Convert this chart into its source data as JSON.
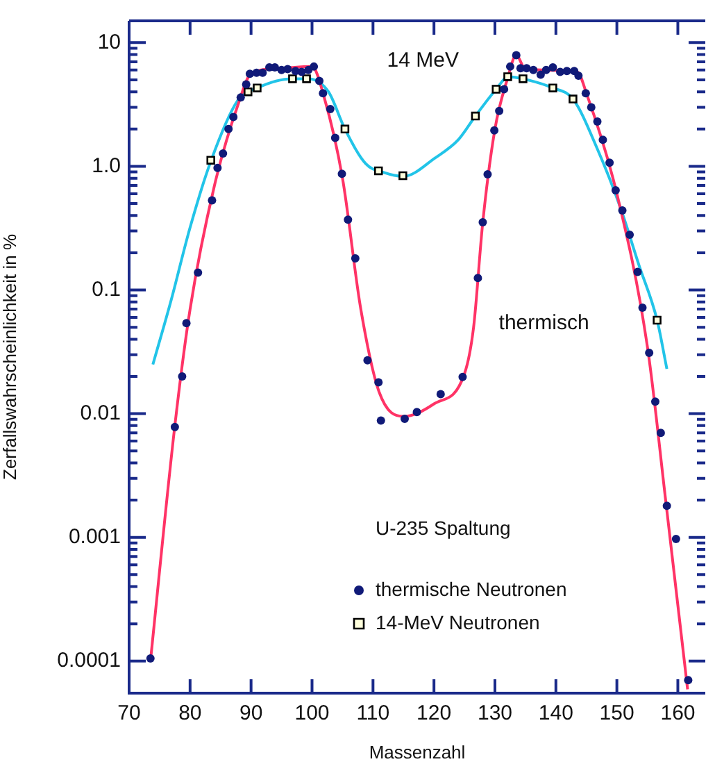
{
  "chart_data": {
    "type": "scatter",
    "xlabel": "Massenzahl",
    "ylabel": "Zerfallswahrscheinlichkeit in %",
    "legend_title": "U-235 Spaltung",
    "legend": "bottom",
    "grid": false,
    "log": "y",
    "xlim": [
      70,
      164.5
    ],
    "xticks": [
      70,
      80,
      90,
      100,
      110,
      120,
      130,
      140,
      150,
      160
    ],
    "ylim": [
      5.5e-05,
      15
    ],
    "yticks": [
      {
        "value": 0.0001,
        "label": "0.0001"
      },
      {
        "value": 0.0002,
        "label": null
      },
      {
        "value": 0.0003,
        "label": null
      },
      {
        "value": 0.0004,
        "label": null
      },
      {
        "value": 0.0005,
        "label": null
      },
      {
        "value": 0.0006,
        "label": null
      },
      {
        "value": 0.0007,
        "label": null
      },
      {
        "value": 0.0008,
        "label": null
      },
      {
        "value": 0.0009,
        "label": null
      },
      {
        "value": 0.001,
        "label": "0.001"
      },
      {
        "value": 0.002,
        "label": null
      },
      {
        "value": 0.003,
        "label": null
      },
      {
        "value": 0.004,
        "label": null
      },
      {
        "value": 0.005,
        "label": null
      },
      {
        "value": 0.006,
        "label": null
      },
      {
        "value": 0.007,
        "label": null
      },
      {
        "value": 0.008,
        "label": null
      },
      {
        "value": 0.009,
        "label": null
      },
      {
        "value": 0.01,
        "label": "0.01"
      },
      {
        "value": 0.02,
        "label": null
      },
      {
        "value": 0.03,
        "label": null
      },
      {
        "value": 0.04,
        "label": null
      },
      {
        "value": 0.05,
        "label": null
      },
      {
        "value": 0.06,
        "label": null
      },
      {
        "value": 0.07,
        "label": null
      },
      {
        "value": 0.08,
        "label": null
      },
      {
        "value": 0.09,
        "label": null
      },
      {
        "value": 0.1,
        "label": "0.1"
      },
      {
        "value": 0.2,
        "label": null
      },
      {
        "value": 0.3,
        "label": null
      },
      {
        "value": 0.4,
        "label": null
      },
      {
        "value": 0.5,
        "label": null
      },
      {
        "value": 0.6,
        "label": null
      },
      {
        "value": 0.7,
        "label": null
      },
      {
        "value": 0.8,
        "label": null
      },
      {
        "value": 0.9,
        "label": null
      },
      {
        "value": 1,
        "label": "1.0"
      },
      {
        "value": 2,
        "label": null
      },
      {
        "value": 3,
        "label": null
      },
      {
        "value": 4,
        "label": null
      },
      {
        "value": 5,
        "label": null
      },
      {
        "value": 6,
        "label": null
      },
      {
        "value": 7,
        "label": null
      },
      {
        "value": 8,
        "label": null
      },
      {
        "value": 9,
        "label": null
      },
      {
        "value": 10,
        "label": "10"
      }
    ],
    "annotations": [
      "14 MeV",
      "thermisch"
    ],
    "series": [
      {
        "type": "line",
        "marker": "none",
        "line_style": "solid",
        "color": "#ff3366",
        "x": [
          73.5,
          77.5,
          80,
          84,
          88,
          90,
          95,
          100,
          102,
          105,
          108,
          111,
          115,
          120,
          125,
          126.5,
          128,
          130,
          132,
          133.5,
          135,
          143.5,
          145,
          150,
          155,
          158,
          161.6
        ],
        "values": [
          0.0001,
          0.008,
          0.07,
          0.7,
          3.3,
          5.6,
          6.2,
          6.4,
          3.6,
          0.8,
          0.07,
          0.015,
          0.0095,
          0.012,
          0.021,
          0.05,
          0.35,
          2.0,
          5.0,
          7.9,
          6.1,
          5.8,
          3.9,
          0.6,
          0.035,
          0.002,
          5.9e-05
        ]
      },
      {
        "type": "line",
        "marker": "none",
        "line_style": "solid",
        "color": "#22c4e8",
        "x": [
          73.9,
          76.9,
          80,
          83.4,
          87.8,
          91,
          96.7,
          99.4,
          102.7,
          105.4,
          108.8,
          111.8,
          115,
          120.2,
          124,
          126.8,
          130.2,
          132.2,
          134.6,
          139.5,
          142.8,
          146.8,
          150.6,
          153.6,
          156.6,
          158.2
        ],
        "values": [
          0.025,
          0.083,
          0.32,
          1.1,
          3.4,
          4.3,
          5.1,
          5.1,
          4.0,
          2.0,
          1.05,
          0.89,
          0.83,
          1.17,
          1.64,
          2.55,
          4.2,
          5.3,
          5.1,
          4.3,
          3.5,
          1.38,
          0.46,
          0.16,
          0.057,
          0.023
        ]
      },
      {
        "type": "scatter",
        "name": "thermische Neutronen",
        "marker": "circle",
        "color": "#101a78",
        "x": [
          73.5,
          77.5,
          78.7,
          79.4,
          81.3,
          83.6,
          84.5,
          85.4,
          86.3,
          87.1,
          88.3,
          89.2,
          89.8,
          90.9,
          91.9,
          93,
          93.9,
          95,
          96,
          97.3,
          98.3,
          99.4,
          100.3,
          101.2,
          101.8,
          103,
          103.8,
          104.9,
          105.9,
          107.1,
          109.1,
          110.9,
          111.3,
          115.2,
          117.2,
          121.1,
          124.7,
          127.2,
          128,
          128.8,
          129.9,
          130.7,
          131.5,
          132.5,
          133.5,
          134.2,
          135.2,
          136.3,
          137.5,
          138.4,
          139.5,
          140.7,
          141.8,
          143,
          143.7,
          144.9,
          145.8,
          146.8,
          147.7,
          148.8,
          149.8,
          150.9,
          152.1,
          153.4,
          154.2,
          155.3,
          156.3,
          157.2,
          158.2,
          159.7,
          161.7
        ],
        "values": [
          0.000105,
          0.0078,
          0.02,
          0.054,
          0.138,
          0.53,
          0.97,
          1.27,
          2.0,
          2.5,
          3.6,
          4.6,
          5.6,
          5.7,
          5.7,
          6.3,
          6.3,
          6.0,
          6.1,
          5.9,
          5.8,
          6.0,
          6.4,
          4.9,
          3.9,
          2.9,
          1.7,
          0.87,
          0.37,
          0.18,
          0.027,
          0.0179,
          0.0088,
          0.0091,
          0.0103,
          0.0144,
          0.0198,
          0.125,
          0.353,
          0.86,
          1.95,
          2.8,
          4.2,
          6.4,
          7.9,
          6.2,
          6.2,
          6.0,
          5.5,
          6.0,
          6.3,
          5.8,
          5.9,
          5.9,
          5.4,
          3.9,
          3.0,
          2.3,
          1.64,
          1.07,
          0.64,
          0.44,
          0.28,
          0.14,
          0.072,
          0.031,
          0.0125,
          0.007,
          0.0018,
          0.00097,
          7e-05
        ]
      },
      {
        "type": "scatter",
        "name": "14-MeV Neutronen",
        "marker": "square",
        "color": "#ffffdd",
        "x": [
          83.4,
          89.5,
          91,
          96.8,
          99.1,
          105.4,
          110.9,
          114.9,
          126.8,
          130.2,
          132.1,
          134.6,
          139.5,
          142.8,
          156.6
        ],
        "values": [
          1.12,
          4.0,
          4.3,
          5.1,
          5.1,
          2.0,
          0.92,
          0.84,
          2.55,
          4.2,
          5.3,
          5.1,
          4.3,
          3.5,
          0.057
        ]
      }
    ]
  }
}
